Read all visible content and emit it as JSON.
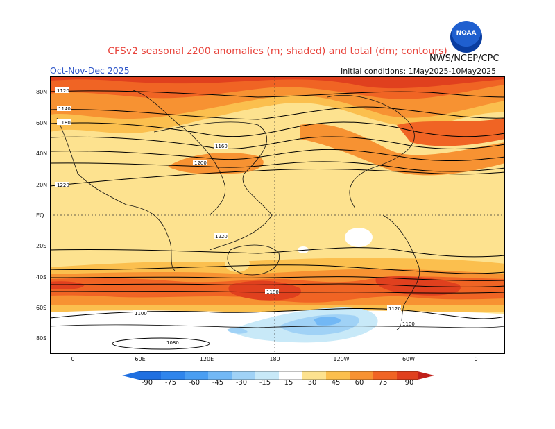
{
  "header": {
    "title": "CFSv2 seasonal z200 anomalies (m; shaded) and total (dm; contours)",
    "season": "Oct-Nov-Dec 2025",
    "initial_conditions": "Initial conditions: 1May2025-10May2025",
    "agency": "NWS/NCEP/CPC",
    "logo_text": "NOAA"
  },
  "map": {
    "y_axis_labels": [
      "80N",
      "60N",
      "40N",
      "20N",
      "EQ",
      "20S",
      "40S",
      "60S",
      "80S"
    ],
    "x_axis_labels": [
      "0",
      "60E",
      "120E",
      "180",
      "120W",
      "60W",
      "0"
    ],
    "contour_labels": [
      {
        "text": "1120"
      },
      {
        "text": "1140"
      },
      {
        "text": "1160"
      },
      {
        "text": "1180"
      },
      {
        "text": "1200"
      },
      {
        "text": "1220"
      },
      {
        "text": "1100"
      },
      {
        "text": "1080"
      }
    ]
  },
  "legend": {
    "ticks": [
      "-90",
      "-75",
      "-60",
      "-45",
      "-30",
      "-15",
      "15",
      "30",
      "45",
      "60",
      "75",
      "90"
    ],
    "colors": [
      "#1f6fe0",
      "#2f85ec",
      "#4a9ef2",
      "#72b8f5",
      "#a0d2f6",
      "#c8e9f8",
      "#ffffff",
      "#fde28f",
      "#fbbf4e",
      "#f79232",
      "#f06424",
      "#e0401e",
      "#c0201a"
    ]
  }
}
